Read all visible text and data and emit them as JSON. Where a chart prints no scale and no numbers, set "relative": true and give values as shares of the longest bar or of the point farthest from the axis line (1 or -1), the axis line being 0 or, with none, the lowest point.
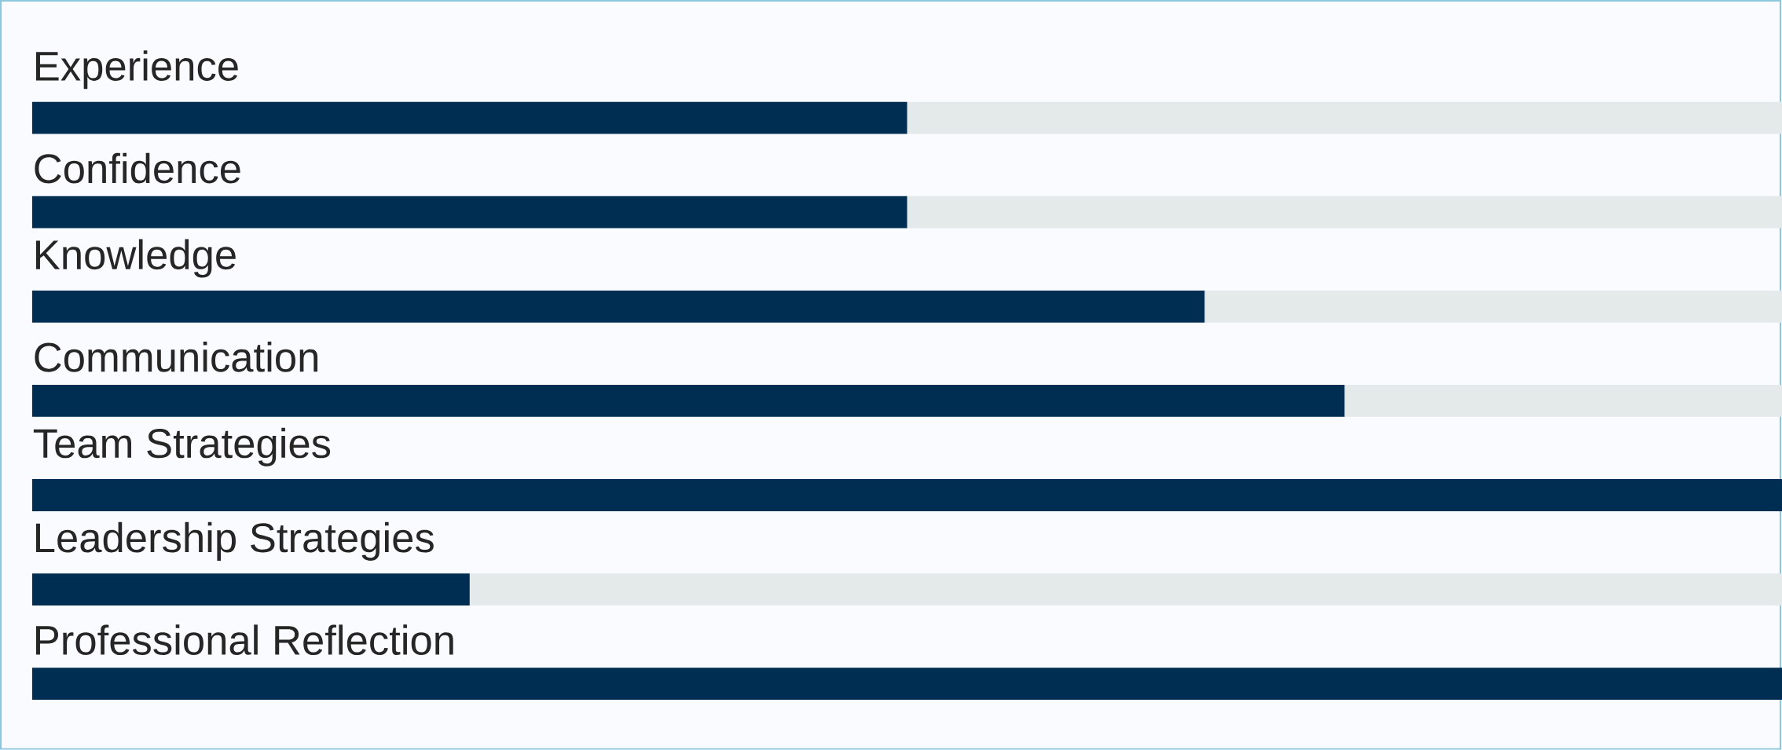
{
  "chart_data": {
    "type": "bar",
    "orientation": "horizontal",
    "stacked": true,
    "relative": true,
    "categories": [
      "Experience",
      "Confidence",
      "Knowledge",
      "Communication",
      "Team Strategies",
      "Leadership Strategies",
      "Professional Reflection"
    ],
    "series": [
      {
        "color": "#002e52",
        "values": [
          0.5,
          0.5,
          0.67,
          0.75,
          1.0,
          0.25,
          1.0
        ]
      },
      {
        "color": "#e4e9ea",
        "values": [
          0.5,
          0.5,
          0.33,
          0.25,
          0.0,
          0.75,
          0.0
        ]
      }
    ]
  }
}
